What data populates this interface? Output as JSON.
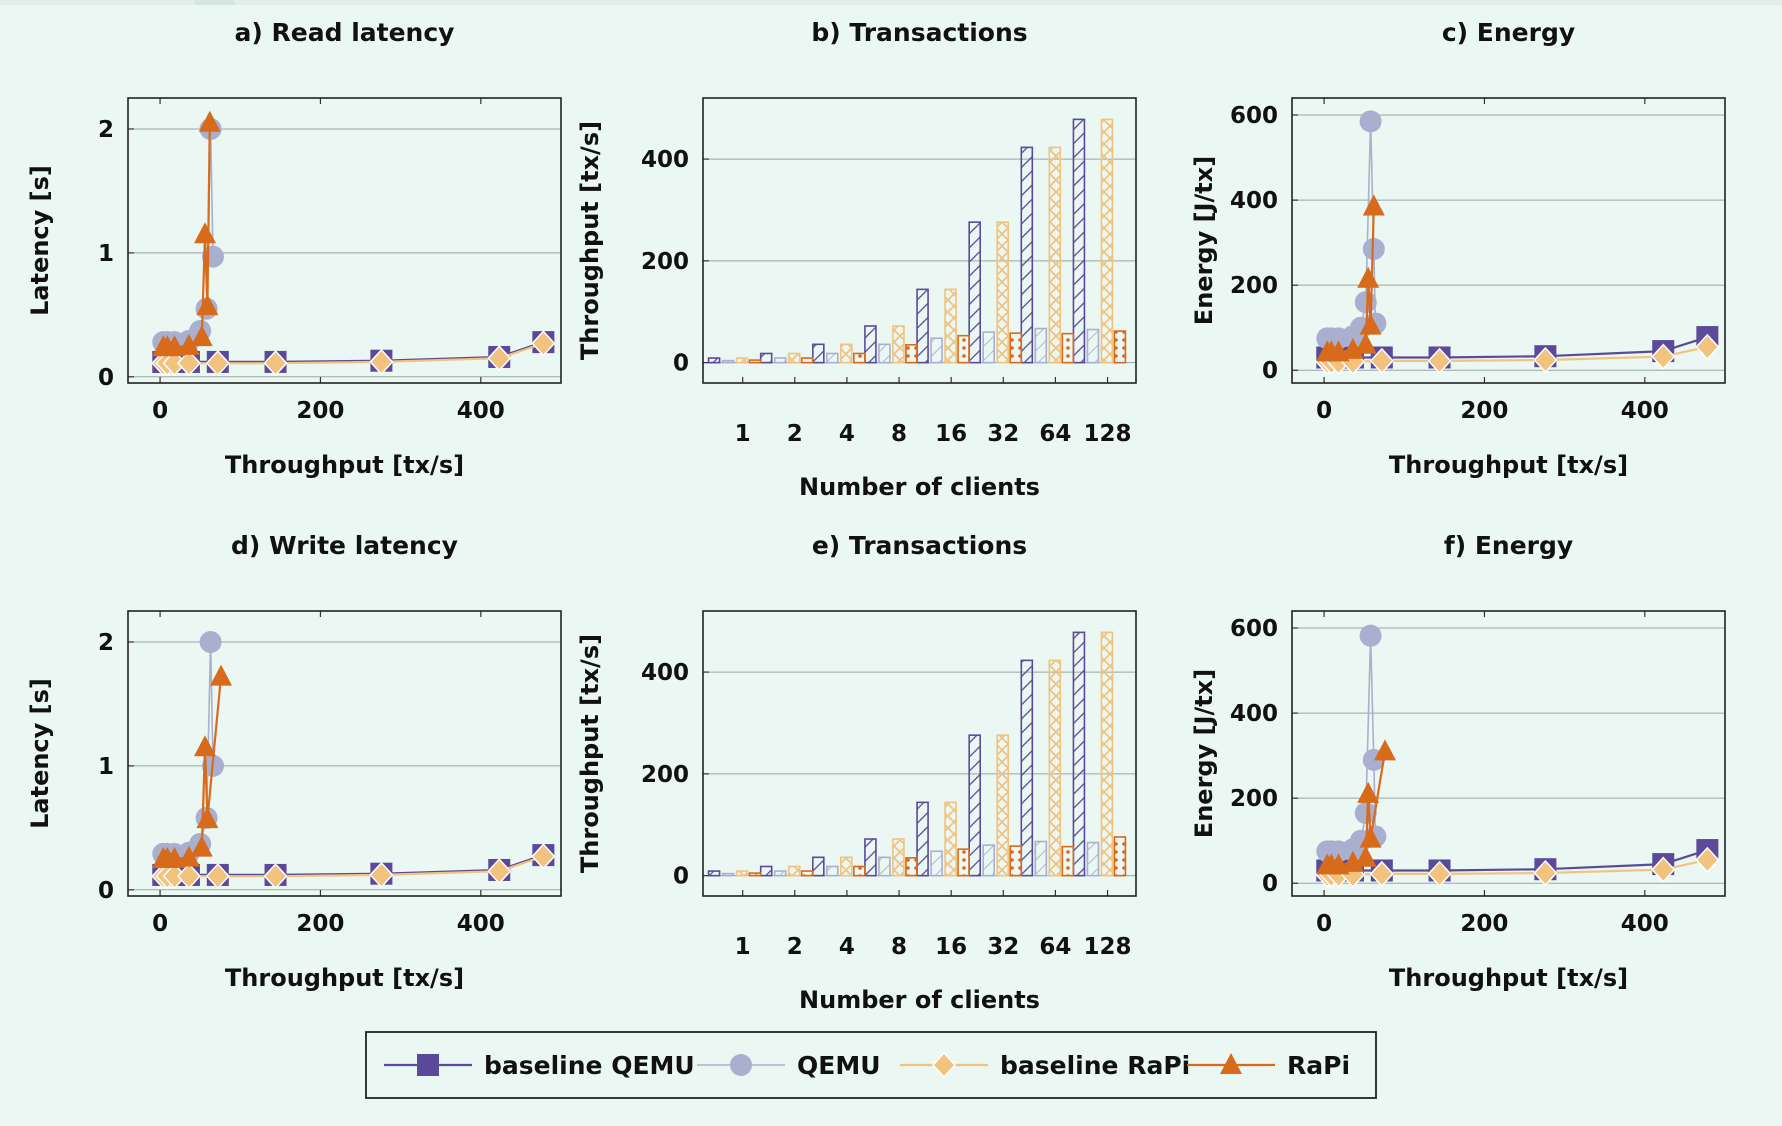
{
  "colors": {
    "background": "#eaf7f2",
    "baseline_qemu": "#5b4a9a",
    "qemu": "#a9b0cf",
    "baseline_rapi": "#f2c27f",
    "rapi": "#d86a1c",
    "grid": "#9aa5a0"
  },
  "legend": {
    "entries": [
      {
        "label": "baseline QEMU",
        "marker": "square"
      },
      {
        "label": "QEMU",
        "marker": "circle"
      },
      {
        "label": "baseline RaPi",
        "marker": "diamond"
      },
      {
        "label": "RaPi",
        "marker": "triangle"
      }
    ]
  },
  "chart_data": [
    {
      "type": "line",
      "title": "a) Read latency",
      "xlabel": "Throughput [tx/s]",
      "ylabel": "Latency [s]",
      "xlim": [
        -40,
        500
      ],
      "ylim": [
        -0.05,
        2.25
      ],
      "xticks": [
        "0",
        "200",
        "400"
      ],
      "yticks": [
        "0",
        "1",
        "2"
      ],
      "grid": "horizontal",
      "series": [
        {
          "name": "baseline QEMU",
          "x": [
            4,
            9,
            18,
            36,
            72,
            144,
            276,
            423,
            478
          ],
          "y": [
            0.12,
            0.12,
            0.12,
            0.12,
            0.12,
            0.12,
            0.13,
            0.16,
            0.28
          ]
        },
        {
          "name": "QEMU",
          "x": [
            4,
            9,
            18,
            36,
            50,
            58,
            63,
            66
          ],
          "y": [
            0.28,
            0.28,
            0.28,
            0.29,
            0.37,
            0.55,
            2.0,
            0.97
          ]
        },
        {
          "name": "baseline RaPi",
          "x": [
            4,
            9,
            18,
            36,
            72,
            144,
            276,
            423,
            478
          ],
          "y": [
            0.11,
            0.11,
            0.11,
            0.11,
            0.11,
            0.11,
            0.12,
            0.15,
            0.27
          ]
        },
        {
          "name": "RaPi",
          "x": [
            4,
            9,
            18,
            36,
            52,
            56,
            59,
            62
          ],
          "y": [
            0.24,
            0.24,
            0.24,
            0.25,
            0.32,
            1.15,
            0.57,
            2.05
          ]
        }
      ]
    },
    {
      "type": "bar",
      "title": "b) Transactions",
      "xlabel": "Number of clients",
      "ylabel": "Throughput [tx/s]",
      "ylim": [
        -40,
        520
      ],
      "yticks": [
        "0",
        "200",
        "400"
      ],
      "categories": [
        "1",
        "2",
        "4",
        "8",
        "16",
        "32",
        "64",
        "128"
      ],
      "grid": "horizontal",
      "series": [
        {
          "name": "baseline QEMU",
          "values": [
            9,
            18,
            36,
            72,
            144,
            276,
            423,
            478
          ]
        },
        {
          "name": "QEMU",
          "values": [
            4,
            9,
            18,
            36,
            48,
            60,
            67,
            65
          ]
        },
        {
          "name": "baseline RaPi",
          "values": [
            9,
            18,
            36,
            72,
            144,
            276,
            423,
            478
          ]
        },
        {
          "name": "RaPi",
          "values": [
            5,
            9,
            18,
            35,
            53,
            58,
            57,
            62
          ]
        }
      ]
    },
    {
      "type": "line",
      "title": "c) Energy",
      "xlabel": "Throughput [tx/s]",
      "ylabel": "Energy [J/tx]",
      "xlim": [
        -40,
        500
      ],
      "ylim": [
        -30,
        640
      ],
      "xticks": [
        "0",
        "200",
        "400"
      ],
      "yticks": [
        "0",
        "200",
        "400",
        "600"
      ],
      "grid": "horizontal",
      "series": [
        {
          "name": "baseline QEMU",
          "x": [
            4,
            9,
            18,
            36,
            72,
            144,
            276,
            423,
            478
          ],
          "y": [
            30,
            30,
            30,
            30,
            30,
            30,
            33,
            45,
            78
          ]
        },
        {
          "name": "QEMU",
          "x": [
            4,
            9,
            18,
            36,
            46,
            52,
            58,
            62,
            64
          ],
          "y": [
            75,
            75,
            75,
            80,
            100,
            160,
            585,
            285,
            110
          ]
        },
        {
          "name": "baseline RaPi",
          "x": [
            4,
            9,
            18,
            36,
            72,
            144,
            276,
            423,
            478
          ],
          "y": [
            20,
            20,
            20,
            20,
            22,
            22,
            24,
            32,
            55
          ]
        },
        {
          "name": "RaPi",
          "x": [
            4,
            9,
            18,
            36,
            52,
            55,
            58,
            62
          ],
          "y": [
            42,
            42,
            42,
            48,
            60,
            215,
            105,
            385
          ]
        }
      ]
    },
    {
      "type": "line",
      "title": "d) Write latency",
      "xlabel": "Throughput [tx/s]",
      "ylabel": "Latency [s]",
      "xlim": [
        -40,
        500
      ],
      "ylim": [
        -0.05,
        2.25
      ],
      "xticks": [
        "0",
        "200",
        "400"
      ],
      "yticks": [
        "0",
        "1",
        "2"
      ],
      "grid": "horizontal",
      "series": [
        {
          "name": "baseline QEMU",
          "x": [
            4,
            9,
            18,
            36,
            72,
            144,
            276,
            423,
            478
          ],
          "y": [
            0.12,
            0.12,
            0.12,
            0.12,
            0.12,
            0.12,
            0.13,
            0.16,
            0.28
          ]
        },
        {
          "name": "QEMU",
          "x": [
            4,
            9,
            18,
            36,
            50,
            58,
            63,
            66
          ],
          "y": [
            0.29,
            0.29,
            0.29,
            0.3,
            0.37,
            0.58,
            2.0,
            1.0
          ]
        },
        {
          "name": "baseline RaPi",
          "x": [
            4,
            9,
            18,
            36,
            72,
            144,
            276,
            423,
            478
          ],
          "y": [
            0.11,
            0.11,
            0.11,
            0.11,
            0.11,
            0.11,
            0.12,
            0.15,
            0.27
          ]
        },
        {
          "name": "RaPi",
          "x": [
            4,
            9,
            18,
            36,
            52,
            56,
            59,
            76
          ],
          "y": [
            0.25,
            0.25,
            0.25,
            0.26,
            0.34,
            1.15,
            0.57,
            1.72
          ]
        }
      ]
    },
    {
      "type": "bar",
      "title": "e) Transactions",
      "xlabel": "Number of clients",
      "ylabel": "Throughput [tx/s]",
      "ylim": [
        -40,
        520
      ],
      "yticks": [
        "0",
        "200",
        "400"
      ],
      "categories": [
        "1",
        "2",
        "4",
        "8",
        "16",
        "32",
        "64",
        "128"
      ],
      "grid": "horizontal",
      "series": [
        {
          "name": "baseline QEMU",
          "values": [
            9,
            18,
            36,
            72,
            144,
            276,
            423,
            478
          ]
        },
        {
          "name": "QEMU",
          "values": [
            4,
            9,
            18,
            36,
            48,
            60,
            67,
            65
          ]
        },
        {
          "name": "baseline RaPi",
          "values": [
            9,
            18,
            36,
            72,
            144,
            276,
            423,
            478
          ]
        },
        {
          "name": "RaPi",
          "values": [
            5,
            9,
            18,
            35,
            52,
            58,
            57,
            76
          ]
        }
      ]
    },
    {
      "type": "line",
      "title": "f) Energy",
      "xlabel": "Throughput [tx/s]",
      "ylabel": "Energy [J/tx]",
      "xlim": [
        -40,
        500
      ],
      "ylim": [
        -30,
        640
      ],
      "xticks": [
        "0",
        "200",
        "400"
      ],
      "yticks": [
        "0",
        "200",
        "400",
        "600"
      ],
      "grid": "horizontal",
      "series": [
        {
          "name": "baseline QEMU",
          "x": [
            4,
            9,
            18,
            36,
            72,
            144,
            276,
            423,
            478
          ],
          "y": [
            30,
            30,
            30,
            30,
            30,
            30,
            33,
            45,
            78
          ]
        },
        {
          "name": "QEMU",
          "x": [
            4,
            9,
            18,
            36,
            46,
            52,
            58,
            62,
            64
          ],
          "y": [
            75,
            75,
            75,
            80,
            100,
            165,
            582,
            290,
            110
          ]
        },
        {
          "name": "baseline RaPi",
          "x": [
            4,
            9,
            18,
            36,
            72,
            144,
            276,
            423,
            478
          ],
          "y": [
            20,
            20,
            20,
            20,
            22,
            22,
            24,
            32,
            55
          ]
        },
        {
          "name": "RaPi",
          "x": [
            4,
            9,
            18,
            36,
            52,
            55,
            58,
            76
          ],
          "y": [
            42,
            42,
            42,
            48,
            60,
            210,
            105,
            310
          ]
        }
      ]
    }
  ]
}
